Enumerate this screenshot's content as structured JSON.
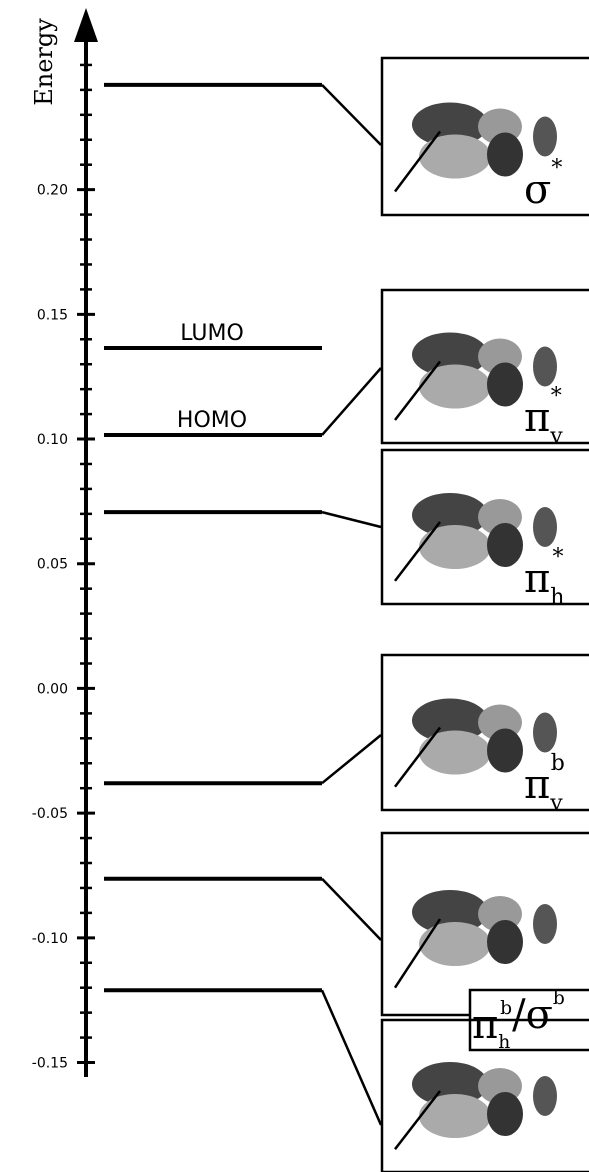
{
  "chart_data": {
    "type": "energy-levels",
    "ylabel": "Energy",
    "ylim": [
      -0.155,
      0.26
    ],
    "yticks": [
      {
        "value": 0.2,
        "label": "0.20"
      },
      {
        "value": 0.15,
        "label": "0.15"
      },
      {
        "value": 0.1,
        "label": "0.10"
      },
      {
        "value": 0.05,
        "label": "0.05"
      },
      {
        "value": 0,
        "label": "0.00"
      },
      {
        "value": -0.05,
        "label": "-0.05"
      },
      {
        "value": -0.1,
        "label": "-0.10"
      },
      {
        "value": -0.15,
        "label": "-0.15"
      }
    ],
    "minor_yticks": [
      -0.14,
      -0.13,
      -0.12,
      -0.11,
      -0.09,
      -0.08,
      -0.07,
      -0.06,
      -0.04,
      -0.03,
      -0.02,
      -0.01,
      0.01,
      0.02,
      0.03,
      0.04,
      0.06,
      0.07,
      0.08,
      0.09,
      0.11,
      0.12,
      0.13,
      0.14,
      0.16,
      0.17,
      0.18,
      0.19,
      0.21,
      0.22,
      0.23,
      0.24,
      0.25
    ],
    "levels": [
      {
        "value": 0.242,
        "orbital": [
          {
            "t": "σ"
          },
          {
            "sup": "*"
          }
        ]
      },
      {
        "value": 0.1365,
        "name": "LUMO"
      },
      {
        "value": 0.1016,
        "name": "HOMO",
        "orbital": [
          {
            "t": "π"
          },
          {
            "sub": "v"
          },
          {
            "sup": "*"
          }
        ]
      },
      {
        "value": 0.0707,
        "orbital": [
          {
            "t": "π"
          },
          {
            "sub": "h"
          },
          {
            "sup": "*"
          }
        ]
      },
      {
        "value": -0.038,
        "orbital": [
          {
            "t": "π"
          },
          {
            "sub": "v"
          },
          {
            "sup": "b"
          }
        ]
      },
      {
        "value": -0.0763,
        "orbital": [
          {
            "t": "π"
          },
          {
            "sub": "h"
          },
          {
            "sup": "b"
          },
          {
            "t": "/σ"
          },
          {
            "sup": "b"
          }
        ]
      },
      {
        "value": -0.121
      }
    ]
  }
}
